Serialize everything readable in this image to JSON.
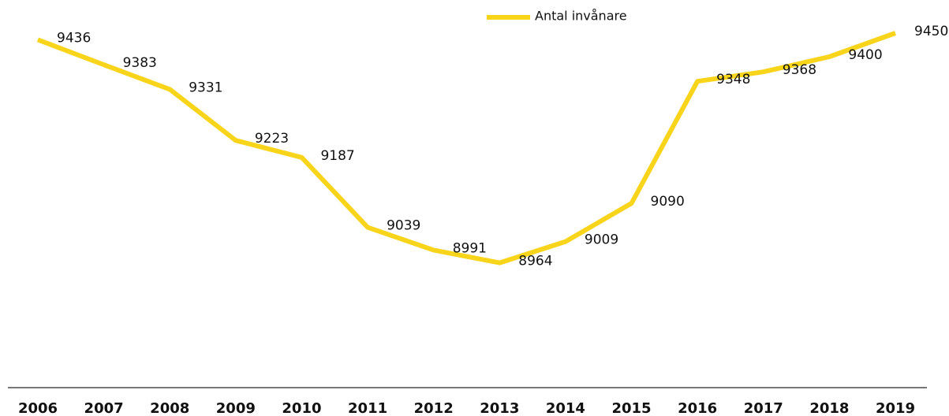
{
  "chart_data": {
    "type": "line",
    "categories": [
      "2006",
      "2007",
      "2008",
      "2009",
      "2010",
      "2011",
      "2012",
      "2013",
      "2014",
      "2015",
      "2016",
      "2017",
      "2018",
      "2019"
    ],
    "series": [
      {
        "name": "Antal invånare",
        "color": "#f8d41a",
        "values": [
          9436,
          9383,
          9331,
          9223,
          9187,
          9039,
          8991,
          8964,
          9009,
          9090,
          9348,
          9368,
          9400,
          9450
        ]
      }
    ],
    "ylim": [
      8700,
      9520
    ],
    "legend": "top"
  }
}
